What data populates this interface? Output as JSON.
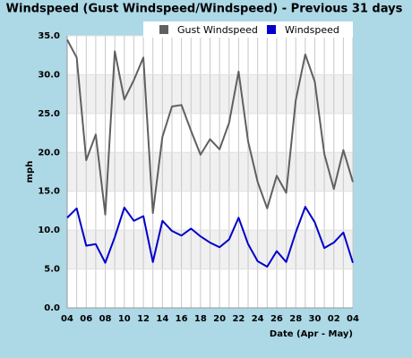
{
  "chart_data": {
    "type": "line",
    "title": "Windspeed (Gust Windspeed/Windspeed) - Previous 31 days",
    "x_label": "Date (Apr - May)",
    "y_label": "mph",
    "categories": [
      "04",
      null,
      "06",
      null,
      "08",
      null,
      "10",
      null,
      "12",
      null,
      "14",
      null,
      "16",
      null,
      "18",
      null,
      "20",
      null,
      "22",
      null,
      "24",
      null,
      "26",
      null,
      "28",
      null,
      "30",
      null,
      "02",
      null,
      "04"
    ],
    "series": [
      {
        "name": "Gust Windspeed",
        "color": "#606060",
        "values": [
          34.5,
          32.2,
          19.0,
          22.3,
          12.0,
          33.0,
          26.8,
          29.3,
          32.2,
          12.2,
          22.0,
          25.9,
          26.1,
          22.8,
          19.7,
          21.7,
          20.4,
          23.8,
          30.4,
          21.4,
          16.2,
          12.8,
          17.0,
          14.8,
          26.7,
          32.6,
          29.1,
          19.8,
          15.3,
          20.3,
          16.2
        ]
      },
      {
        "name": "Windspeed",
        "color": "#0000cc",
        "values": [
          11.6,
          12.8,
          8.0,
          8.2,
          5.8,
          9.1,
          12.9,
          11.2,
          11.8,
          5.9,
          11.2,
          9.9,
          9.3,
          10.2,
          9.2,
          8.4,
          7.8,
          8.8,
          11.6,
          8.2,
          6.0,
          5.3,
          7.3,
          5.9,
          9.7,
          13.0,
          11.0,
          7.7,
          8.4,
          9.7,
          5.8
        ]
      }
    ],
    "ylim": [
      0,
      35
    ],
    "yticks": [
      {
        "value": 0,
        "label": "0.0"
      },
      {
        "value": 5,
        "label": "5.0"
      },
      {
        "value": 10,
        "label": "10.0"
      },
      {
        "value": 15,
        "label": "15.0"
      },
      {
        "value": 20,
        "label": "20.0"
      },
      {
        "value": 25,
        "label": "25.0"
      },
      {
        "value": 30,
        "label": "30.0"
      },
      {
        "value": 35,
        "label": "35.0"
      }
    ],
    "grid": true,
    "legend": "top-right"
  }
}
